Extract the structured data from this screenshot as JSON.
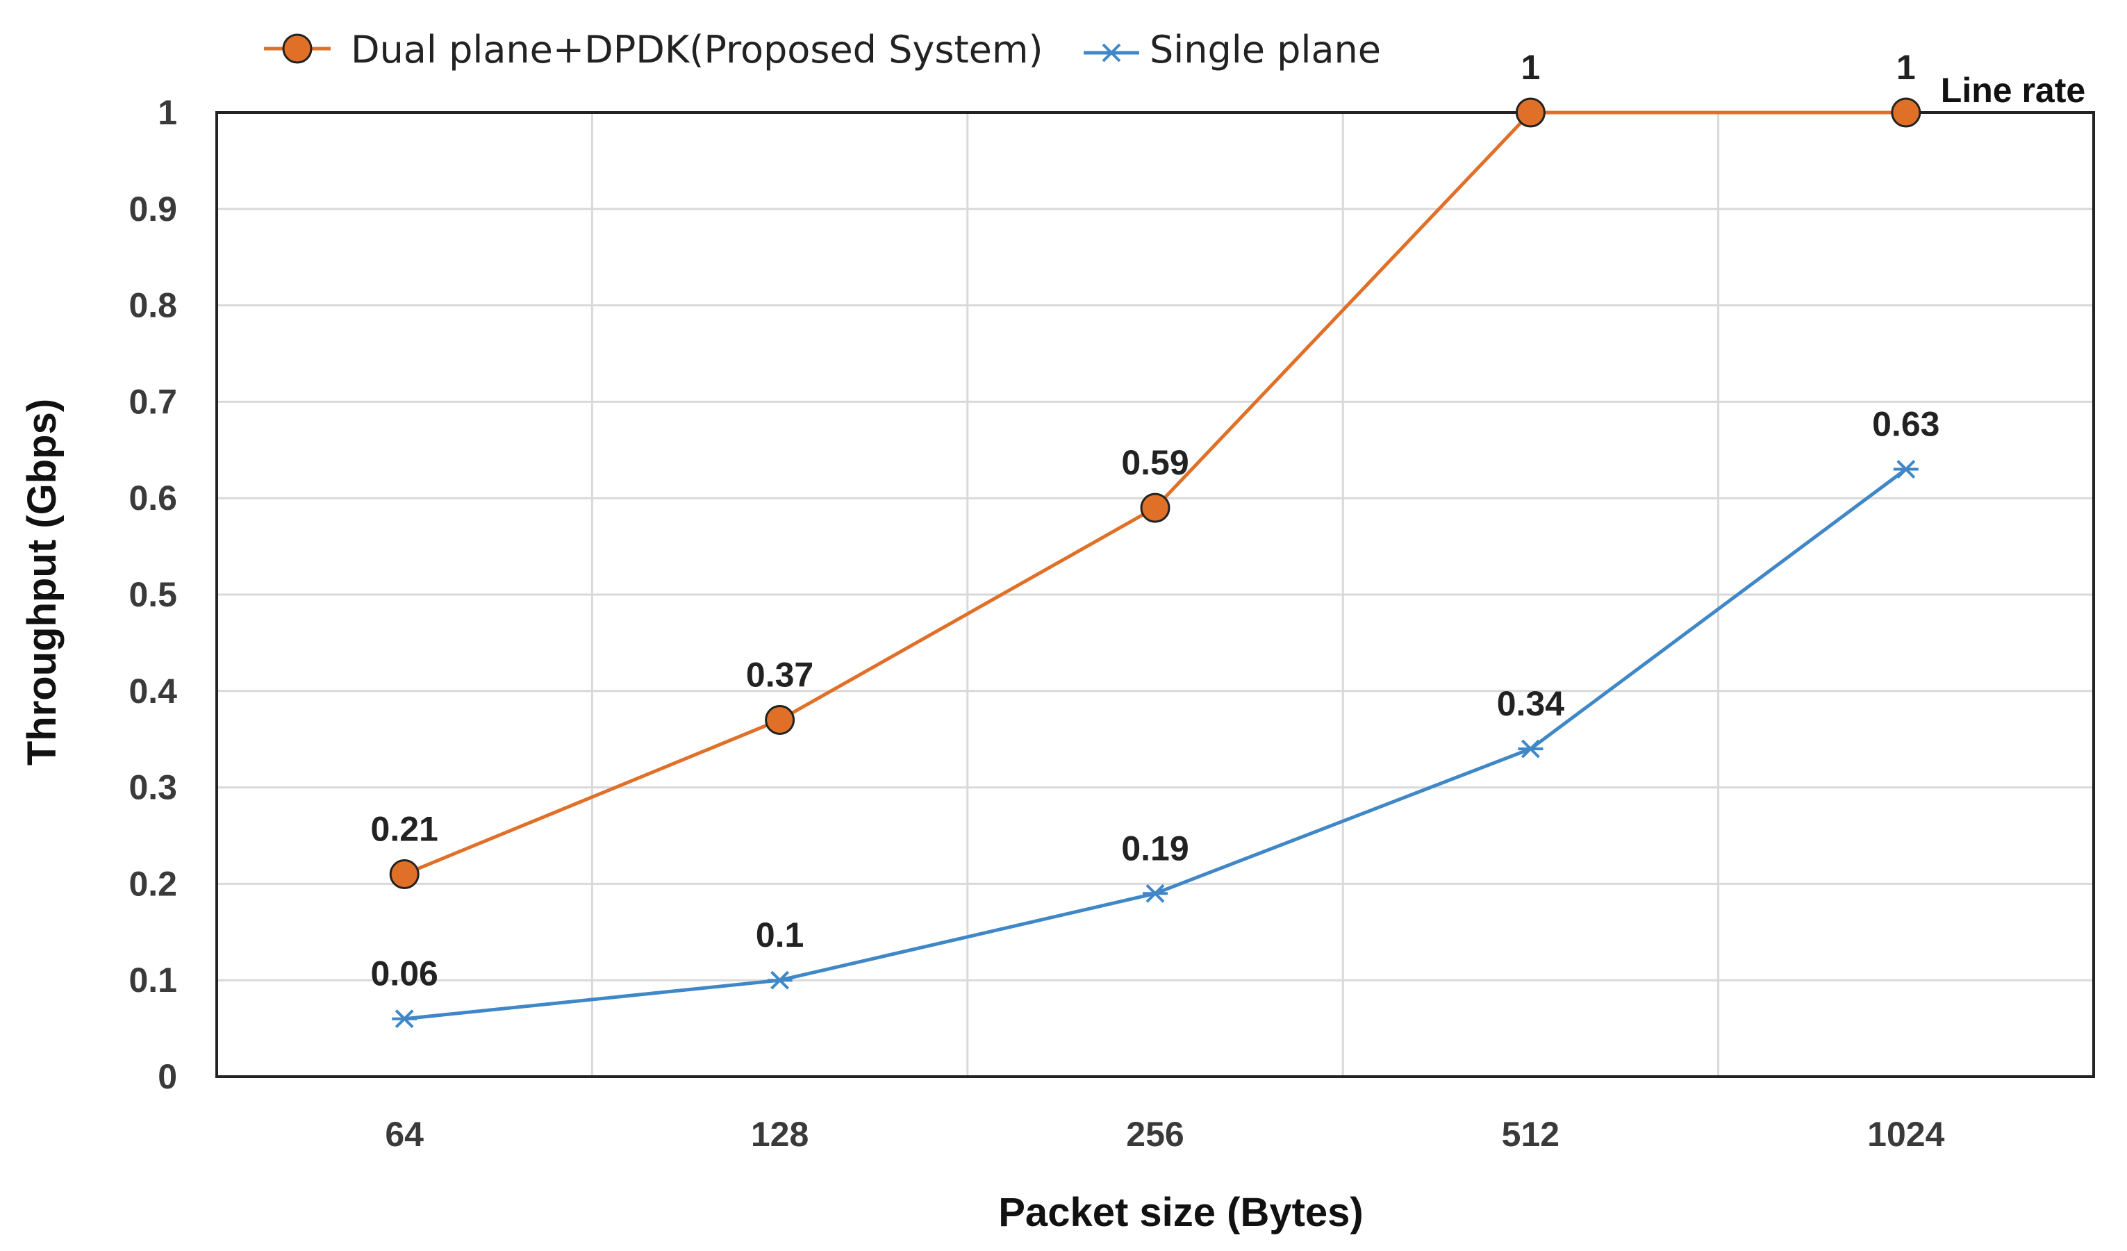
{
  "chart_data": {
    "type": "line",
    "title": "",
    "xlabel": "Packet size (Bytes)",
    "ylabel": "Throughput (Gbps)",
    "categories": [
      "64",
      "128",
      "256",
      "512",
      "1024"
    ],
    "ylim": [
      0,
      1
    ],
    "yticks": [
      "0",
      "0.1",
      "0.2",
      "0.3",
      "0.4",
      "0.5",
      "0.6",
      "0.7",
      "0.8",
      "0.9",
      "1"
    ],
    "grid": true,
    "legend_position": "top-left",
    "series": [
      {
        "name": "Dual plane+DPDK(Proposed System)",
        "color": "#e07028",
        "marker": "circle",
        "values": [
          0.21,
          0.37,
          0.59,
          1,
          1
        ],
        "labels": [
          "0.21",
          "0.37",
          "0.59",
          "1",
          "1"
        ]
      },
      {
        "name": "Single plane",
        "color": "#3f87c6",
        "marker": "x",
        "values": [
          0.06,
          0.1,
          0.19,
          0.34,
          0.63
        ],
        "labels": [
          "0.06",
          "0.1",
          "0.19",
          "0.34",
          "0.63"
        ]
      }
    ],
    "annotations": [
      {
        "text": "Line rate",
        "series": 0,
        "point": 4
      }
    ]
  }
}
